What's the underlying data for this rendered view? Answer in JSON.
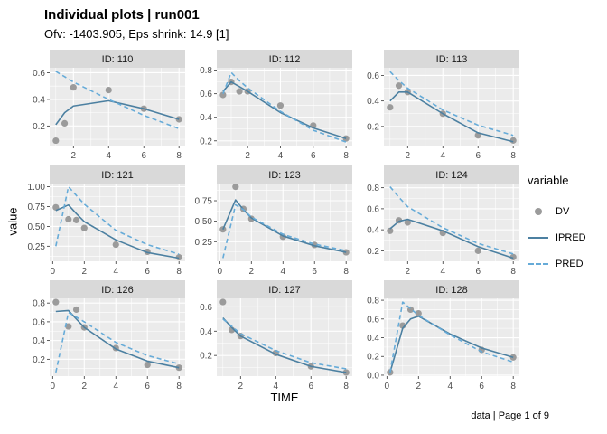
{
  "title": "Individual plots | run001",
  "subtitle": "Ofv: -1403.905, Eps shrink: 14.9 [1]",
  "axes": {
    "x_label": "TIME",
    "y_label": "value"
  },
  "caption": "data | Page 1 of 9",
  "legend": {
    "title": "variable",
    "items": [
      {
        "label": "DV",
        "type": "point"
      },
      {
        "label": "IPRED",
        "type": "solid-line"
      },
      {
        "label": "PRED",
        "type": "dashed-line"
      }
    ]
  },
  "colors": {
    "dv": "#9b9b9b",
    "ipred": "#4c80a1",
    "pred": "#66abd8",
    "panel_bg": "#ebebeb",
    "strip_bg": "#d9d9d9",
    "grid": "#ffffff",
    "tick_text": "#4d4d4d",
    "tick_mark": "#333333",
    "strip_text": "#1a1a1a"
  },
  "chart_data": {
    "type": "line",
    "x_variable": "TIME",
    "y_variable": "value",
    "series_legend": [
      "DV",
      "IPRED",
      "PRED"
    ],
    "facets": [
      {
        "label": "ID: 110",
        "col": 0,
        "row": 0,
        "x_range": [
          0.65,
          8.35
        ],
        "y_range": [
          0.053,
          0.637
        ],
        "x_ticks": {
          "values": [
            2,
            4,
            6,
            8
          ],
          "labels": [
            "2",
            "4",
            "6",
            "8"
          ]
        },
        "y_ticks": {
          "values": [
            0.2,
            0.4,
            0.6
          ],
          "labels": [
            "0.2",
            "0.4",
            "0.6"
          ]
        },
        "dv": {
          "x": [
            1,
            1.5,
            2,
            4,
            6,
            8
          ],
          "y": [
            0.09,
            0.22,
            0.49,
            0.47,
            0.33,
            0.25
          ]
        },
        "ipred": {
          "x": [
            1,
            1.5,
            2,
            4,
            6,
            8
          ],
          "y": [
            0.21,
            0.3,
            0.35,
            0.39,
            0.33,
            0.25
          ]
        },
        "pred": {
          "x": [
            1,
            1.5,
            2,
            4,
            6,
            8
          ],
          "y": [
            0.61,
            0.57,
            0.53,
            0.4,
            0.28,
            0.18
          ]
        }
      },
      {
        "label": "ID: 112",
        "col": 1,
        "row": 0,
        "x_range": [
          0.12,
          8.38
        ],
        "y_range": [
          0.16,
          0.82
        ],
        "x_ticks": {
          "values": [
            2,
            4,
            6,
            8
          ],
          "labels": [
            "2",
            "4",
            "6",
            "8"
          ]
        },
        "y_ticks": {
          "values": [
            0.2,
            0.4,
            0.6,
            0.8
          ],
          "labels": [
            "0.2",
            "0.4",
            "0.6",
            "0.8"
          ]
        },
        "dv": {
          "x": [
            0.5,
            1,
            1.5,
            2,
            4,
            6,
            8
          ],
          "y": [
            0.59,
            0.7,
            0.62,
            0.62,
            0.5,
            0.33,
            0.22
          ]
        },
        "ipred": {
          "x": [
            0.5,
            1,
            1.5,
            2,
            4,
            6,
            8
          ],
          "y": [
            0.62,
            0.7,
            0.66,
            0.62,
            0.44,
            0.31,
            0.22
          ]
        },
        "pred": {
          "x": [
            0.5,
            1,
            1.5,
            2,
            4,
            6,
            8
          ],
          "y": [
            0.6,
            0.78,
            0.71,
            0.65,
            0.45,
            0.29,
            0.19
          ]
        }
      },
      {
        "label": "ID: 113",
        "col": 2,
        "row": 0,
        "x_range": [
          0.65,
          8.35
        ],
        "y_range": [
          0.05,
          0.66
        ],
        "x_ticks": {
          "values": [
            2,
            4,
            6,
            8
          ],
          "labels": [
            "2",
            "4",
            "6",
            "8"
          ]
        },
        "y_ticks": {
          "values": [
            0.2,
            0.4,
            0.6
          ],
          "labels": [
            "0.2",
            "0.4",
            "0.6"
          ]
        },
        "dv": {
          "x": [
            1,
            1.5,
            2,
            4,
            6,
            8
          ],
          "y": [
            0.35,
            0.52,
            0.47,
            0.3,
            0.13,
            0.09
          ]
        },
        "ipred": {
          "x": [
            1,
            1.5,
            2,
            4,
            6,
            8
          ],
          "y": [
            0.4,
            0.47,
            0.47,
            0.3,
            0.15,
            0.08
          ]
        },
        "pred": {
          "x": [
            1,
            1.5,
            2,
            4,
            6,
            8
          ],
          "y": [
            0.63,
            0.56,
            0.5,
            0.33,
            0.21,
            0.13
          ]
        }
      },
      {
        "label": "ID: 121",
        "col": 0,
        "row": 1,
        "x_range": [
          -0.19,
          8.39
        ],
        "y_range": [
          0.06,
          1.04
        ],
        "x_ticks": {
          "values": [
            0,
            2,
            4,
            6,
            8
          ],
          "labels": [
            "0",
            "2",
            "4",
            "6",
            "8"
          ]
        },
        "y_ticks": {
          "values": [
            0.25,
            0.5,
            0.75,
            1.0
          ],
          "labels": [
            "0.25",
            "0.50",
            "0.75",
            "1.00"
          ]
        },
        "dv": {
          "x": [
            0.2,
            1,
            1.5,
            2,
            4,
            6,
            8
          ],
          "y": [
            0.74,
            0.59,
            0.58,
            0.48,
            0.27,
            0.18,
            0.11
          ]
        },
        "ipred": {
          "x": [
            0.2,
            1,
            1.5,
            2,
            4,
            6,
            8
          ],
          "y": [
            0.7,
            0.77,
            0.66,
            0.56,
            0.33,
            0.17,
            0.1
          ]
        },
        "pred": {
          "x": [
            0.2,
            1,
            1.5,
            2,
            4,
            6,
            8
          ],
          "y": [
            0.25,
            1.0,
            0.89,
            0.78,
            0.45,
            0.27,
            0.15
          ]
        }
      },
      {
        "label": "ID: 123",
        "col": 1,
        "row": 1,
        "x_range": [
          -0.19,
          8.39
        ],
        "y_range": [
          0.01,
          0.96
        ],
        "x_ticks": {
          "values": [
            0,
            2,
            4,
            6,
            8
          ],
          "labels": [
            "0",
            "2",
            "4",
            "6",
            "8"
          ]
        },
        "y_ticks": {
          "values": [
            0.25,
            0.5,
            0.75
          ],
          "labels": [
            "0.25",
            "0.50",
            "0.75"
          ]
        },
        "dv": {
          "x": [
            0.2,
            1,
            1.5,
            2,
            4,
            6,
            8
          ],
          "y": [
            0.4,
            0.92,
            0.65,
            0.53,
            0.31,
            0.21,
            0.12
          ]
        },
        "ipred": {
          "x": [
            0.2,
            1,
            1.5,
            2,
            4,
            6,
            8
          ],
          "y": [
            0.4,
            0.76,
            0.64,
            0.54,
            0.32,
            0.2,
            0.12
          ]
        },
        "pred": {
          "x": [
            0.2,
            1,
            1.5,
            2,
            4,
            6,
            8
          ],
          "y": [
            0.05,
            0.7,
            0.64,
            0.55,
            0.34,
            0.22,
            0.14
          ]
        }
      },
      {
        "label": "ID: 124",
        "col": 2,
        "row": 1,
        "x_range": [
          0.65,
          8.35
        ],
        "y_range": [
          0.1,
          0.84
        ],
        "x_ticks": {
          "values": [
            2,
            4,
            6,
            8
          ],
          "labels": [
            "2",
            "4",
            "6",
            "8"
          ]
        },
        "y_ticks": {
          "values": [
            0.2,
            0.4,
            0.6,
            0.8
          ],
          "labels": [
            "0.2",
            "0.4",
            "0.6",
            "0.8"
          ]
        },
        "dv": {
          "x": [
            1,
            1.5,
            2,
            4,
            6,
            8
          ],
          "y": [
            0.39,
            0.49,
            0.47,
            0.37,
            0.2,
            0.14
          ]
        },
        "ipred": {
          "x": [
            1,
            1.5,
            2,
            4,
            6,
            8
          ],
          "y": [
            0.41,
            0.48,
            0.5,
            0.39,
            0.24,
            0.13
          ]
        },
        "pred": {
          "x": [
            1,
            1.5,
            2,
            4,
            6,
            8
          ],
          "y": [
            0.81,
            0.71,
            0.62,
            0.42,
            0.27,
            0.17
          ]
        }
      },
      {
        "label": "ID: 126",
        "col": 0,
        "row": 2,
        "x_range": [
          -0.19,
          8.39
        ],
        "y_range": [
          0.02,
          0.85
        ],
        "x_ticks": {
          "values": [
            0,
            2,
            4,
            6,
            8
          ],
          "labels": [
            "0",
            "2",
            "4",
            "6",
            "8"
          ]
        },
        "y_ticks": {
          "values": [
            0.2,
            0.4,
            0.6,
            0.8
          ],
          "labels": [
            "0.2",
            "0.4",
            "0.6",
            "0.8"
          ]
        },
        "dv": {
          "x": [
            0.2,
            1,
            1.5,
            2,
            4,
            6,
            8
          ],
          "y": [
            0.81,
            0.55,
            0.73,
            0.54,
            0.32,
            0.14,
            0.11
          ]
        },
        "ipred": {
          "x": [
            0.2,
            1,
            1.5,
            2,
            4,
            6,
            8
          ],
          "y": [
            0.71,
            0.72,
            0.63,
            0.54,
            0.31,
            0.18,
            0.11
          ]
        },
        "pred": {
          "x": [
            0.2,
            1,
            1.5,
            2,
            4,
            6,
            8
          ],
          "y": [
            0.06,
            0.7,
            0.65,
            0.6,
            0.38,
            0.24,
            0.15
          ]
        }
      },
      {
        "label": "ID: 127",
        "col": 1,
        "row": 2,
        "x_range": [
          0.65,
          8.35
        ],
        "y_range": [
          0.03,
          0.67
        ],
        "x_ticks": {
          "values": [
            2,
            4,
            6,
            8
          ],
          "labels": [
            "2",
            "4",
            "6",
            "8"
          ]
        },
        "y_ticks": {
          "values": [
            0.2,
            0.4,
            0.6
          ],
          "labels": [
            "0.2",
            "0.4",
            "0.6"
          ]
        },
        "dv": {
          "x": [
            1,
            1.5,
            2,
            4,
            6,
            8
          ],
          "y": [
            0.64,
            0.41,
            0.36,
            0.22,
            0.11,
            0.06
          ]
        },
        "ipred": {
          "x": [
            1,
            1.5,
            2,
            4,
            6,
            8
          ],
          "y": [
            0.51,
            0.43,
            0.36,
            0.21,
            0.11,
            0.06
          ]
        },
        "pred": {
          "x": [
            1,
            1.5,
            2,
            4,
            6,
            8
          ],
          "y": [
            0.5,
            0.44,
            0.38,
            0.24,
            0.14,
            0.09
          ]
        }
      },
      {
        "label": "ID: 128",
        "col": 2,
        "row": 2,
        "x_range": [
          -0.19,
          8.39
        ],
        "y_range": [
          -0.01,
          0.82
        ],
        "x_ticks": {
          "values": [
            0,
            2,
            4,
            6,
            8
          ],
          "labels": [
            "0",
            "2",
            "4",
            "6",
            "8"
          ]
        },
        "y_ticks": {
          "values": [
            0.0,
            0.2,
            0.4,
            0.6,
            0.8
          ],
          "labels": [
            "0.0",
            "0.2",
            "0.4",
            "0.6",
            "0.8"
          ]
        },
        "dv": {
          "x": [
            0.2,
            1,
            1.5,
            2,
            6,
            8
          ],
          "y": [
            0.03,
            0.53,
            0.7,
            0.66,
            0.27,
            0.19
          ]
        },
        "ipred": {
          "x": [
            0.2,
            1,
            1.5,
            2,
            4,
            6,
            8
          ],
          "y": [
            0.03,
            0.5,
            0.6,
            0.63,
            0.44,
            0.29,
            0.19
          ]
        },
        "pred": {
          "x": [
            0.2,
            1,
            1.5,
            2,
            4,
            6,
            8
          ],
          "y": [
            0.03,
            0.78,
            0.71,
            0.64,
            0.43,
            0.25,
            0.14
          ]
        }
      }
    ]
  }
}
